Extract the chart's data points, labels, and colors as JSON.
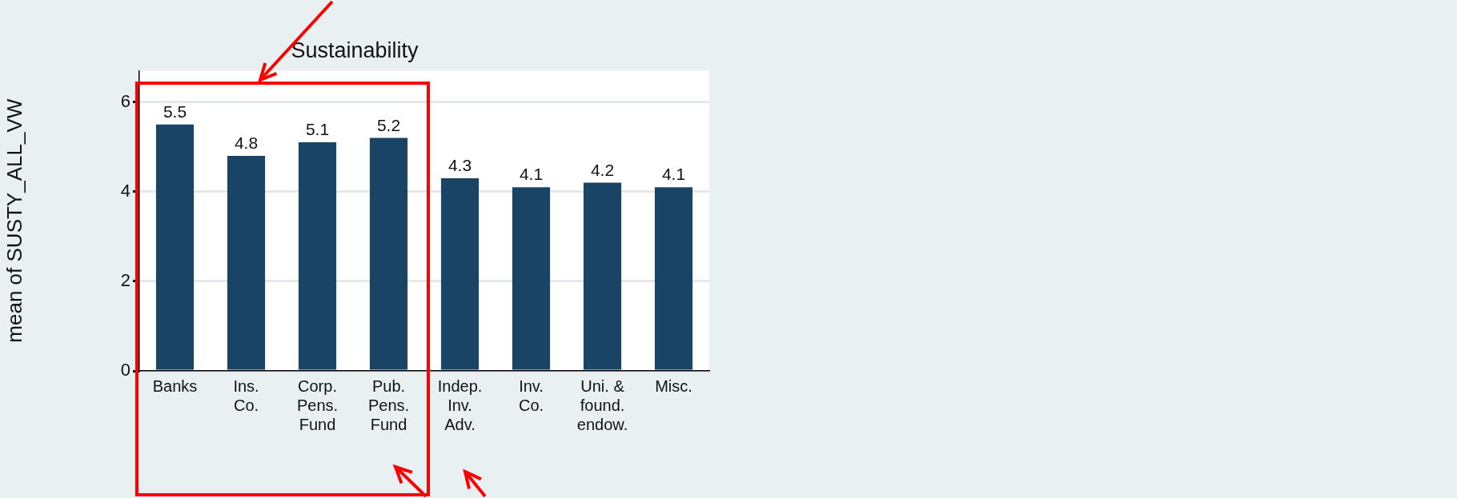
{
  "chart_data": {
    "type": "bar",
    "title": "Sustainability",
    "ylabel": "mean of SUSTY_ALL_VW",
    "categories": [
      "Banks",
      "Ins. Co.",
      "Corp. Pens. Fund",
      "Pub. Pens. Fund",
      "Indep. Inv. Adv.",
      "Inv. Co.",
      "Uni. & found. endow.",
      "Misc."
    ],
    "values": [
      5.5,
      4.8,
      5.1,
      5.2,
      4.3,
      4.1,
      4.2,
      4.1
    ],
    "color": "#1a4466",
    "ylim": [
      0,
      6.7
    ],
    "yticks": [
      0,
      2,
      4,
      6
    ],
    "grid": "y",
    "data_labels": true
  }
}
